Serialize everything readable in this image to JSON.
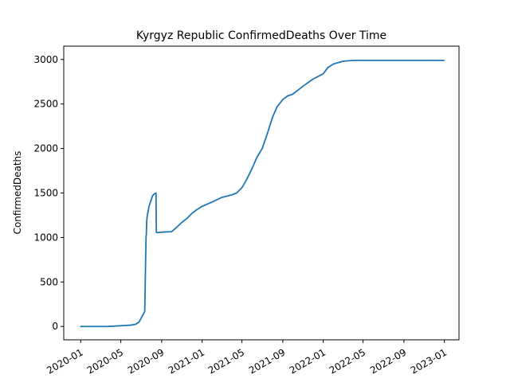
{
  "chart_data": {
    "type": "line",
    "title": "Kyrgyz Republic  ConfirmedDeaths Over Time",
    "xlabel": "",
    "ylabel": "ConfirmedDeaths",
    "xlim": [
      "2019-11-11",
      "2023-02-14"
    ],
    "ylim": [
      -150,
      3150
    ],
    "x_ticks": [
      "2020-01",
      "2020-05",
      "2020-09",
      "2021-01",
      "2021-05",
      "2021-09",
      "2022-01",
      "2022-05",
      "2022-09",
      "2023-01"
    ],
    "y_ticks": [
      0,
      500,
      1000,
      1500,
      2000,
      2500,
      3000
    ],
    "grid": false,
    "colors": {
      "line": "#1f77b4"
    },
    "series": [
      {
        "x": [
          "2020-01-01",
          "2020-03-20",
          "2020-04-15",
          "2020-05-15",
          "2020-06-01",
          "2020-06-15",
          "2020-06-25",
          "2020-07-05",
          "2020-07-12",
          "2020-07-15",
          "2020-07-16",
          "2020-07-17",
          "2020-07-18",
          "2020-07-20",
          "2020-07-25",
          "2020-08-01",
          "2020-08-05",
          "2020-08-10",
          "2020-08-15",
          "2020-08-16",
          "2020-08-20",
          "2020-09-01",
          "2020-10-01",
          "2020-10-15",
          "2020-11-01",
          "2020-11-15",
          "2020-12-01",
          "2020-12-15",
          "2021-01-01",
          "2021-02-01",
          "2021-03-01",
          "2021-04-01",
          "2021-04-15",
          "2021-05-01",
          "2021-05-15",
          "2021-06-01",
          "2021-06-15",
          "2021-07-01",
          "2021-07-15",
          "2021-08-01",
          "2021-08-15",
          "2021-09-01",
          "2021-09-15",
          "2021-10-01",
          "2021-11-01",
          "2021-12-01",
          "2022-01-01",
          "2022-01-15",
          "2022-02-01",
          "2022-03-01",
          "2022-04-01",
          "2022-06-01",
          "2022-09-01",
          "2022-12-31"
        ],
        "y": [
          0,
          0,
          5,
          12,
          15,
          25,
          50,
          120,
          170,
          800,
          1000,
          1050,
          1180,
          1250,
          1350,
          1430,
          1470,
          1490,
          1500,
          1055,
          1055,
          1060,
          1065,
          1110,
          1170,
          1210,
          1270,
          1310,
          1350,
          1400,
          1450,
          1480,
          1500,
          1560,
          1650,
          1780,
          1900,
          2000,
          2150,
          2350,
          2470,
          2550,
          2590,
          2610,
          2700,
          2780,
          2840,
          2910,
          2950,
          2980,
          2990,
          2990,
          2990,
          2990
        ]
      }
    ]
  }
}
